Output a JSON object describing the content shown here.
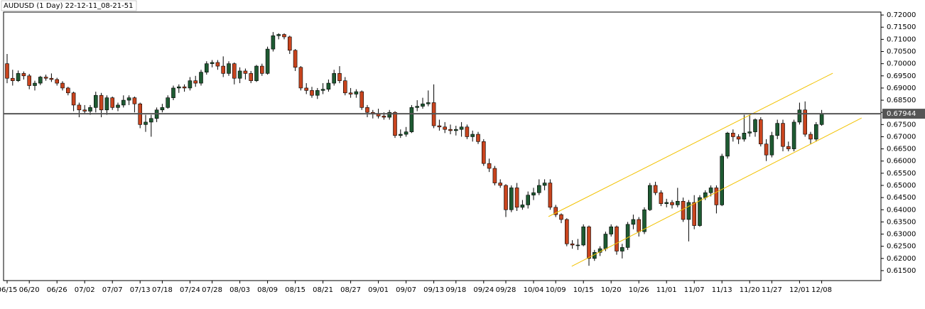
{
  "chart_data": {
    "type": "candlestick",
    "title": "AUDUSD (1 Day) 22-12-11_08-21-51",
    "bull_color": "#1e5a32",
    "bear_color": "#c8441e",
    "trendline_color": "#f2c200",
    "ylim": [
      0.6109,
      0.7212
    ],
    "yticks": [
      {
        "value": 0.72,
        "label": "0.72000"
      },
      {
        "value": 0.715,
        "label": "0.71500"
      },
      {
        "value": 0.71,
        "label": "0.71000"
      },
      {
        "value": 0.705,
        "label": "0.70500"
      },
      {
        "value": 0.7,
        "label": "0.70000"
      },
      {
        "value": 0.695,
        "label": "0.69500"
      },
      {
        "value": 0.69,
        "label": "0.69000"
      },
      {
        "value": 0.685,
        "label": "0.68500"
      },
      {
        "value": 0.68,
        "label": "0.68000"
      },
      {
        "value": 0.675,
        "label": "0.67500"
      },
      {
        "value": 0.67,
        "label": "0.67000"
      },
      {
        "value": 0.665,
        "label": "0.66500"
      },
      {
        "value": 0.66,
        "label": "0.66000"
      },
      {
        "value": 0.655,
        "label": "0.65500"
      },
      {
        "value": 0.65,
        "label": "0.65000"
      },
      {
        "value": 0.645,
        "label": "0.64500"
      },
      {
        "value": 0.64,
        "label": "0.64000"
      },
      {
        "value": 0.635,
        "label": "0.63500"
      },
      {
        "value": 0.63,
        "label": "0.63000"
      },
      {
        "value": 0.625,
        "label": "0.62500"
      },
      {
        "value": 0.62,
        "label": "0.62000"
      },
      {
        "value": 0.615,
        "label": "0.61500"
      }
    ],
    "current_price": {
      "value": 0.67944,
      "label": "0.67944"
    },
    "trendlines": [
      {
        "x": [
          97.7,
          149.0
        ],
        "y": [
          0.6372,
          0.6961
        ]
      },
      {
        "x": [
          101.9,
          154.2
        ],
        "y": [
          0.6168,
          0.6777
        ]
      }
    ],
    "categories": [
      "06/15",
      null,
      null,
      null,
      "06/20",
      null,
      null,
      null,
      null,
      "06/26",
      null,
      null,
      null,
      null,
      "07/02",
      null,
      null,
      null,
      null,
      "07/07",
      null,
      null,
      null,
      null,
      "07/13",
      null,
      null,
      null,
      "07/18",
      null,
      null,
      null,
      null,
      "07/24",
      null,
      null,
      null,
      "07/28",
      null,
      null,
      null,
      null,
      "08/03",
      null,
      null,
      null,
      null,
      "08/09",
      null,
      null,
      null,
      null,
      "08/15",
      null,
      null,
      null,
      null,
      "08/21",
      null,
      null,
      null,
      null,
      "08/27",
      null,
      null,
      null,
      null,
      "09/01",
      null,
      null,
      null,
      null,
      "09/07",
      null,
      null,
      null,
      null,
      "09/13",
      null,
      null,
      null,
      "09/18",
      null,
      null,
      null,
      null,
      "09/24",
      null,
      null,
      null,
      "09/28",
      null,
      null,
      null,
      null,
      "10/04",
      null,
      null,
      null,
      "10/09",
      null,
      null,
      null,
      null,
      "10/15",
      null,
      null,
      null,
      null,
      "10/20",
      null,
      null,
      null,
      null,
      "10/26",
      null,
      null,
      null,
      null,
      "11/01",
      null,
      null,
      null,
      null,
      "11/07",
      null,
      null,
      null,
      null,
      "11/13",
      null,
      null,
      null,
      null,
      "11/20",
      null,
      null,
      null,
      "11/27",
      null,
      null,
      null,
      null,
      "12/01",
      null,
      null,
      null,
      "12/08"
    ],
    "values": [
      [
        0.7,
        0.704,
        0.692,
        0.694
      ],
      [
        0.694,
        0.6975,
        0.691,
        0.693
      ],
      [
        0.693,
        0.6972,
        0.6925,
        0.696
      ],
      [
        0.696,
        0.6968,
        0.6935,
        0.695
      ],
      [
        0.695,
        0.6958,
        0.6895,
        0.691
      ],
      [
        0.691,
        0.693,
        0.689,
        0.692
      ],
      [
        0.692,
        0.695,
        0.6912,
        0.6945
      ],
      [
        0.6945,
        0.6955,
        0.693,
        0.694
      ],
      [
        0.694,
        0.696,
        0.6925,
        0.6935
      ],
      [
        0.6935,
        0.6942,
        0.691,
        0.692
      ],
      [
        0.692,
        0.6928,
        0.689,
        0.69
      ],
      [
        0.69,
        0.6905,
        0.687,
        0.688
      ],
      [
        0.688,
        0.6885,
        0.6805,
        0.683
      ],
      [
        0.683,
        0.684,
        0.678,
        0.681
      ],
      [
        0.681,
        0.683,
        0.6795,
        0.6805
      ],
      [
        0.6805,
        0.683,
        0.679,
        0.682
      ],
      [
        0.682,
        0.6885,
        0.68,
        0.687
      ],
      [
        0.687,
        0.688,
        0.678,
        0.681
      ],
      [
        0.681,
        0.687,
        0.679,
        0.686
      ],
      [
        0.686,
        0.6865,
        0.681,
        0.682
      ],
      [
        0.682,
        0.684,
        0.6805,
        0.683
      ],
      [
        0.683,
        0.687,
        0.682,
        0.685
      ],
      [
        0.685,
        0.687,
        0.683,
        0.686
      ],
      [
        0.686,
        0.6865,
        0.68,
        0.6835
      ],
      [
        0.6835,
        0.684,
        0.6735,
        0.675
      ],
      [
        0.675,
        0.679,
        0.672,
        0.676
      ],
      [
        0.676,
        0.679,
        0.67,
        0.6775
      ],
      [
        0.6775,
        0.682,
        0.676,
        0.681
      ],
      [
        0.681,
        0.6835,
        0.68,
        0.682
      ],
      [
        0.682,
        0.687,
        0.6815,
        0.686
      ],
      [
        0.686,
        0.691,
        0.685,
        0.69
      ],
      [
        0.69,
        0.6915,
        0.688,
        0.6905
      ],
      [
        0.6905,
        0.6915,
        0.6885,
        0.69
      ],
      [
        0.69,
        0.6945,
        0.689,
        0.693
      ],
      [
        0.693,
        0.695,
        0.6905,
        0.692
      ],
      [
        0.692,
        0.6975,
        0.691,
        0.6965
      ],
      [
        0.6965,
        0.701,
        0.6955,
        0.7
      ],
      [
        0.7,
        0.7015,
        0.6985,
        0.7005
      ],
      [
        0.7005,
        0.7015,
        0.6975,
        0.699
      ],
      [
        0.699,
        0.703,
        0.6945,
        0.696
      ],
      [
        0.696,
        0.701,
        0.695,
        0.7
      ],
      [
        0.7,
        0.7005,
        0.6915,
        0.694
      ],
      [
        0.694,
        0.6985,
        0.692,
        0.697
      ],
      [
        0.697,
        0.698,
        0.6935,
        0.696
      ],
      [
        0.696,
        0.697,
        0.692,
        0.693
      ],
      [
        0.693,
        0.6995,
        0.6925,
        0.699
      ],
      [
        0.699,
        0.7,
        0.695,
        0.696
      ],
      [
        0.696,
        0.707,
        0.6955,
        0.706
      ],
      [
        0.706,
        0.713,
        0.705,
        0.7115
      ],
      [
        0.7115,
        0.7125,
        0.71,
        0.712
      ],
      [
        0.712,
        0.7125,
        0.71,
        0.711
      ],
      [
        0.711,
        0.7115,
        0.704,
        0.7055
      ],
      [
        0.7055,
        0.706,
        0.697,
        0.6985
      ],
      [
        0.6985,
        0.699,
        0.689,
        0.69
      ],
      [
        0.69,
        0.692,
        0.6875,
        0.689
      ],
      [
        0.689,
        0.6905,
        0.686,
        0.687
      ],
      [
        0.687,
        0.69,
        0.6855,
        0.689
      ],
      [
        0.689,
        0.692,
        0.6875,
        0.6895
      ],
      [
        0.6895,
        0.6935,
        0.6885,
        0.692
      ],
      [
        0.692,
        0.6975,
        0.691,
        0.696
      ],
      [
        0.696,
        0.699,
        0.692,
        0.693
      ],
      [
        0.693,
        0.6945,
        0.687,
        0.688
      ],
      [
        0.688,
        0.69,
        0.686,
        0.6875
      ],
      [
        0.6875,
        0.6895,
        0.686,
        0.6885
      ],
      [
        0.6885,
        0.689,
        0.681,
        0.682
      ],
      [
        0.682,
        0.683,
        0.678,
        0.68
      ],
      [
        0.68,
        0.681,
        0.6775,
        0.6795
      ],
      [
        0.6795,
        0.6815,
        0.6775,
        0.6785
      ],
      [
        0.6785,
        0.68,
        0.677,
        0.678
      ],
      [
        0.678,
        0.681,
        0.677,
        0.68
      ],
      [
        0.68,
        0.6805,
        0.6695,
        0.6705
      ],
      [
        0.6705,
        0.673,
        0.6695,
        0.671
      ],
      [
        0.671,
        0.674,
        0.67,
        0.672
      ],
      [
        0.672,
        0.683,
        0.6715,
        0.682
      ],
      [
        0.682,
        0.685,
        0.6805,
        0.6825
      ],
      [
        0.6825,
        0.686,
        0.6815,
        0.6835
      ],
      [
        0.6835,
        0.689,
        0.6825,
        0.684
      ],
      [
        0.684,
        0.6915,
        0.6735,
        0.6745
      ],
      [
        0.6745,
        0.677,
        0.6725,
        0.674
      ],
      [
        0.674,
        0.676,
        0.6715,
        0.673
      ],
      [
        0.673,
        0.675,
        0.671,
        0.6725
      ],
      [
        0.6725,
        0.6745,
        0.6705,
        0.673
      ],
      [
        0.673,
        0.676,
        0.67,
        0.674
      ],
      [
        0.674,
        0.675,
        0.669,
        0.67
      ],
      [
        0.67,
        0.6725,
        0.668,
        0.671
      ],
      [
        0.671,
        0.672,
        0.667,
        0.668
      ],
      [
        0.668,
        0.669,
        0.658,
        0.659
      ],
      [
        0.659,
        0.661,
        0.6555,
        0.657
      ],
      [
        0.657,
        0.658,
        0.65,
        0.651
      ],
      [
        0.651,
        0.6525,
        0.649,
        0.65
      ],
      [
        0.65,
        0.6505,
        0.637,
        0.64
      ],
      [
        0.64,
        0.65,
        0.639,
        0.649
      ],
      [
        0.649,
        0.651,
        0.6395,
        0.641
      ],
      [
        0.641,
        0.644,
        0.64,
        0.642
      ],
      [
        0.642,
        0.6475,
        0.6405,
        0.646
      ],
      [
        0.646,
        0.649,
        0.644,
        0.647
      ],
      [
        0.647,
        0.6525,
        0.646,
        0.65
      ],
      [
        0.65,
        0.6525,
        0.648,
        0.651
      ],
      [
        0.651,
        0.6525,
        0.64,
        0.641
      ],
      [
        0.641,
        0.642,
        0.637,
        0.638
      ],
      [
        0.638,
        0.6385,
        0.6345,
        0.636
      ],
      [
        0.636,
        0.6365,
        0.625,
        0.626
      ],
      [
        0.626,
        0.6275,
        0.624,
        0.6255
      ],
      [
        0.6255,
        0.628,
        0.6235,
        0.6255
      ],
      [
        0.6255,
        0.634,
        0.625,
        0.633
      ],
      [
        0.633,
        0.6335,
        0.617,
        0.62
      ],
      [
        0.62,
        0.6235,
        0.619,
        0.6225
      ],
      [
        0.6225,
        0.625,
        0.621,
        0.624
      ],
      [
        0.624,
        0.631,
        0.623,
        0.63
      ],
      [
        0.63,
        0.634,
        0.629,
        0.633
      ],
      [
        0.633,
        0.6335,
        0.6215,
        0.623
      ],
      [
        0.623,
        0.626,
        0.62,
        0.6245
      ],
      [
        0.6245,
        0.635,
        0.6235,
        0.634
      ],
      [
        0.634,
        0.638,
        0.632,
        0.636
      ],
      [
        0.636,
        0.637,
        0.629,
        0.631
      ],
      [
        0.631,
        0.641,
        0.63,
        0.64
      ],
      [
        0.64,
        0.651,
        0.6395,
        0.65
      ],
      [
        0.65,
        0.6515,
        0.646,
        0.647
      ],
      [
        0.647,
        0.648,
        0.6415,
        0.6425
      ],
      [
        0.6425,
        0.6445,
        0.641,
        0.643
      ],
      [
        0.643,
        0.644,
        0.6405,
        0.642
      ],
      [
        0.642,
        0.649,
        0.641,
        0.6435
      ],
      [
        0.6435,
        0.645,
        0.635,
        0.636
      ],
      [
        0.636,
        0.644,
        0.627,
        0.643
      ],
      [
        0.643,
        0.646,
        0.632,
        0.6335
      ],
      [
        0.6335,
        0.646,
        0.633,
        0.645
      ],
      [
        0.645,
        0.648,
        0.644,
        0.647
      ],
      [
        0.647,
        0.65,
        0.6455,
        0.649
      ],
      [
        0.649,
        0.65,
        0.6385,
        0.642
      ],
      [
        0.642,
        0.663,
        0.6415,
        0.662
      ],
      [
        0.662,
        0.672,
        0.661,
        0.6715
      ],
      [
        0.6715,
        0.673,
        0.668,
        0.67
      ],
      [
        0.67,
        0.671,
        0.667,
        0.669
      ],
      [
        0.669,
        0.679,
        0.668,
        0.6715
      ],
      [
        0.6715,
        0.679,
        0.67,
        0.672
      ],
      [
        0.672,
        0.6775,
        0.67,
        0.677
      ],
      [
        0.677,
        0.678,
        0.666,
        0.667
      ],
      [
        0.667,
        0.669,
        0.66,
        0.6625
      ],
      [
        0.6625,
        0.672,
        0.6615,
        0.6705
      ],
      [
        0.6705,
        0.677,
        0.669,
        0.6755
      ],
      [
        0.6755,
        0.677,
        0.664,
        0.666
      ],
      [
        0.666,
        0.668,
        0.664,
        0.665
      ],
      [
        0.665,
        0.677,
        0.664,
        0.676
      ],
      [
        0.676,
        0.684,
        0.675,
        0.681
      ],
      [
        0.681,
        0.6845,
        0.67,
        0.671
      ],
      [
        0.671,
        0.672,
        0.667,
        0.669
      ],
      [
        0.669,
        0.676,
        0.668,
        0.675
      ],
      [
        0.675,
        0.681,
        0.6745,
        0.6794
      ]
    ]
  }
}
